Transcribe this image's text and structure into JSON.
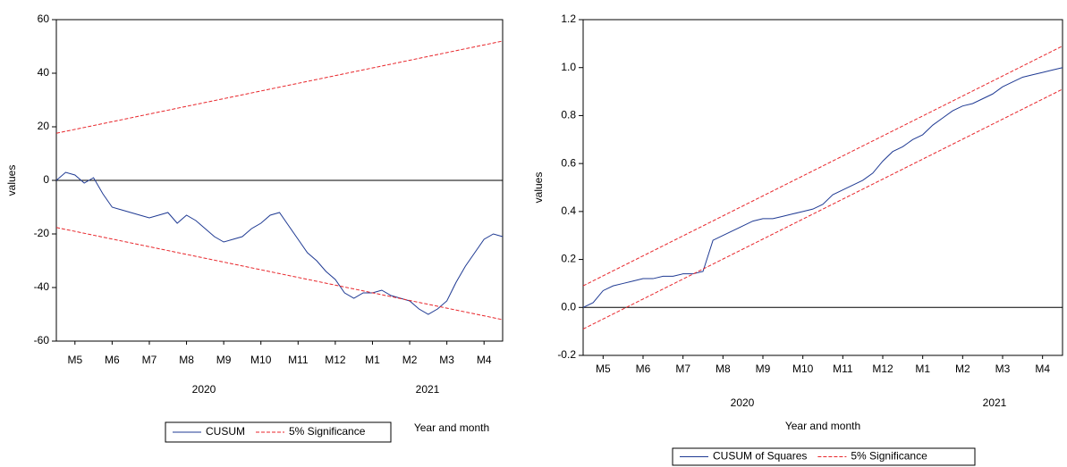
{
  "chart_data": [
    {
      "type": "line",
      "y_label": "values",
      "x_label": "Year and month",
      "annotations": [
        "2020",
        "2021"
      ],
      "xlim": [
        0,
        12
      ],
      "ylim": [
        -60,
        60
      ],
      "yticks": [
        -60,
        -40,
        -20,
        0,
        20,
        40,
        60
      ],
      "xticks": [
        {
          "value": 0.5,
          "label": "M5"
        },
        {
          "value": 1.5,
          "label": "M6"
        },
        {
          "value": 2.5,
          "label": "M7"
        },
        {
          "value": 3.5,
          "label": "M8"
        },
        {
          "value": 4.5,
          "label": "M9"
        },
        {
          "value": 5.5,
          "label": "M10"
        },
        {
          "value": 6.5,
          "label": "M11"
        },
        {
          "value": 7.5,
          "label": "M12"
        },
        {
          "value": 8.5,
          "label": "M1"
        },
        {
          "value": 9.5,
          "label": "M2"
        },
        {
          "value": 10.5,
          "label": "M3"
        },
        {
          "value": 11.5,
          "label": "M4"
        }
      ],
      "series": [
        {
          "name": "CUSUM",
          "color": "#1f3a93",
          "x": [
            0,
            0.25,
            0.5,
            0.75,
            1,
            1.25,
            1.5,
            1.75,
            2,
            2.25,
            2.5,
            2.75,
            3,
            3.25,
            3.5,
            3.75,
            4,
            4.25,
            4.5,
            4.75,
            5,
            5.25,
            5.5,
            5.75,
            6,
            6.25,
            6.5,
            6.75,
            7,
            7.25,
            7.5,
            7.75,
            8,
            8.25,
            8.5,
            8.75,
            9,
            9.25,
            9.5,
            9.75,
            10,
            10.25,
            10.5,
            10.75,
            11,
            11.25,
            11.5,
            11.75,
            12
          ],
          "values": [
            0,
            3,
            2,
            -1,
            1,
            -5,
            -10,
            -11,
            -12,
            -13,
            -14,
            -13,
            -12,
            -16,
            -13,
            -15,
            -18,
            -21,
            -23,
            -22,
            -21,
            -18,
            -16,
            -13,
            -12,
            -17,
            -22,
            -27,
            -30,
            -34,
            -37,
            -42,
            -44,
            -42,
            -42,
            -41,
            -43,
            -44,
            -45,
            -48,
            -50,
            -48,
            -45,
            -38,
            -32,
            -27,
            -22,
            -20,
            -21
          ]
        },
        {
          "name": "5% Significance",
          "color": "#e8262b",
          "dashed": true,
          "x": [
            0,
            12
          ],
          "values": [
            17.6,
            52
          ],
          "lower_values": [
            -17.6,
            -52
          ]
        }
      ]
    },
    {
      "type": "line",
      "y_label": "values",
      "x_label": "Year and month",
      "annotations": [
        "2020",
        "2021"
      ],
      "xlim": [
        0,
        12
      ],
      "ylim": [
        -0.2,
        1.2
      ],
      "yticks": [
        -0.2,
        {
          "value": 0,
          "label": "0.0"
        },
        0.2,
        0.4,
        0.6,
        0.8,
        {
          "value": 1,
          "label": "1.0"
        },
        1.2
      ],
      "xticks": [
        {
          "value": 0.5,
          "label": "M5"
        },
        {
          "value": 1.5,
          "label": "M6"
        },
        {
          "value": 2.5,
          "label": "M7"
        },
        {
          "value": 3.5,
          "label": "M8"
        },
        {
          "value": 4.5,
          "label": "M9"
        },
        {
          "value": 5.5,
          "label": "M10"
        },
        {
          "value": 6.5,
          "label": "M11"
        },
        {
          "value": 7.5,
          "label": "M12"
        },
        {
          "value": 8.5,
          "label": "M1"
        },
        {
          "value": 9.5,
          "label": "M2"
        },
        {
          "value": 10.5,
          "label": "M3"
        },
        {
          "value": 11.5,
          "label": "M4"
        }
      ],
      "series": [
        {
          "name": "CUSUM of Squares",
          "color": "#1f3a93",
          "x": [
            0,
            0.25,
            0.5,
            0.75,
            1,
            1.25,
            1.5,
            1.75,
            2,
            2.25,
            2.5,
            2.75,
            3,
            3.25,
            3.5,
            3.75,
            4,
            4.25,
            4.5,
            4.75,
            5,
            5.25,
            5.5,
            5.75,
            6,
            6.25,
            6.5,
            6.75,
            7,
            7.25,
            7.5,
            7.75,
            8,
            8.25,
            8.5,
            8.75,
            9,
            9.25,
            9.5,
            9.75,
            10,
            10.25,
            10.5,
            10.75,
            11,
            11.25,
            11.5,
            11.75,
            12
          ],
          "values": [
            0,
            0.02,
            0.07,
            0.09,
            0.1,
            0.11,
            0.12,
            0.12,
            0.13,
            0.13,
            0.14,
            0.14,
            0.15,
            0.28,
            0.3,
            0.32,
            0.34,
            0.36,
            0.37,
            0.37,
            0.38,
            0.39,
            0.4,
            0.41,
            0.43,
            0.47,
            0.49,
            0.51,
            0.53,
            0.56,
            0.61,
            0.65,
            0.67,
            0.7,
            0.72,
            0.76,
            0.79,
            0.82,
            0.84,
            0.85,
            0.87,
            0.89,
            0.92,
            0.94,
            0.96,
            0.97,
            0.98,
            0.99,
            1
          ]
        },
        {
          "name": "5% Significance",
          "color": "#e8262b",
          "dashed": true,
          "x": [
            0,
            12
          ],
          "values": [
            0.09,
            1.09
          ],
          "lower_values": [
            -0.09,
            0.91
          ]
        }
      ]
    }
  ]
}
